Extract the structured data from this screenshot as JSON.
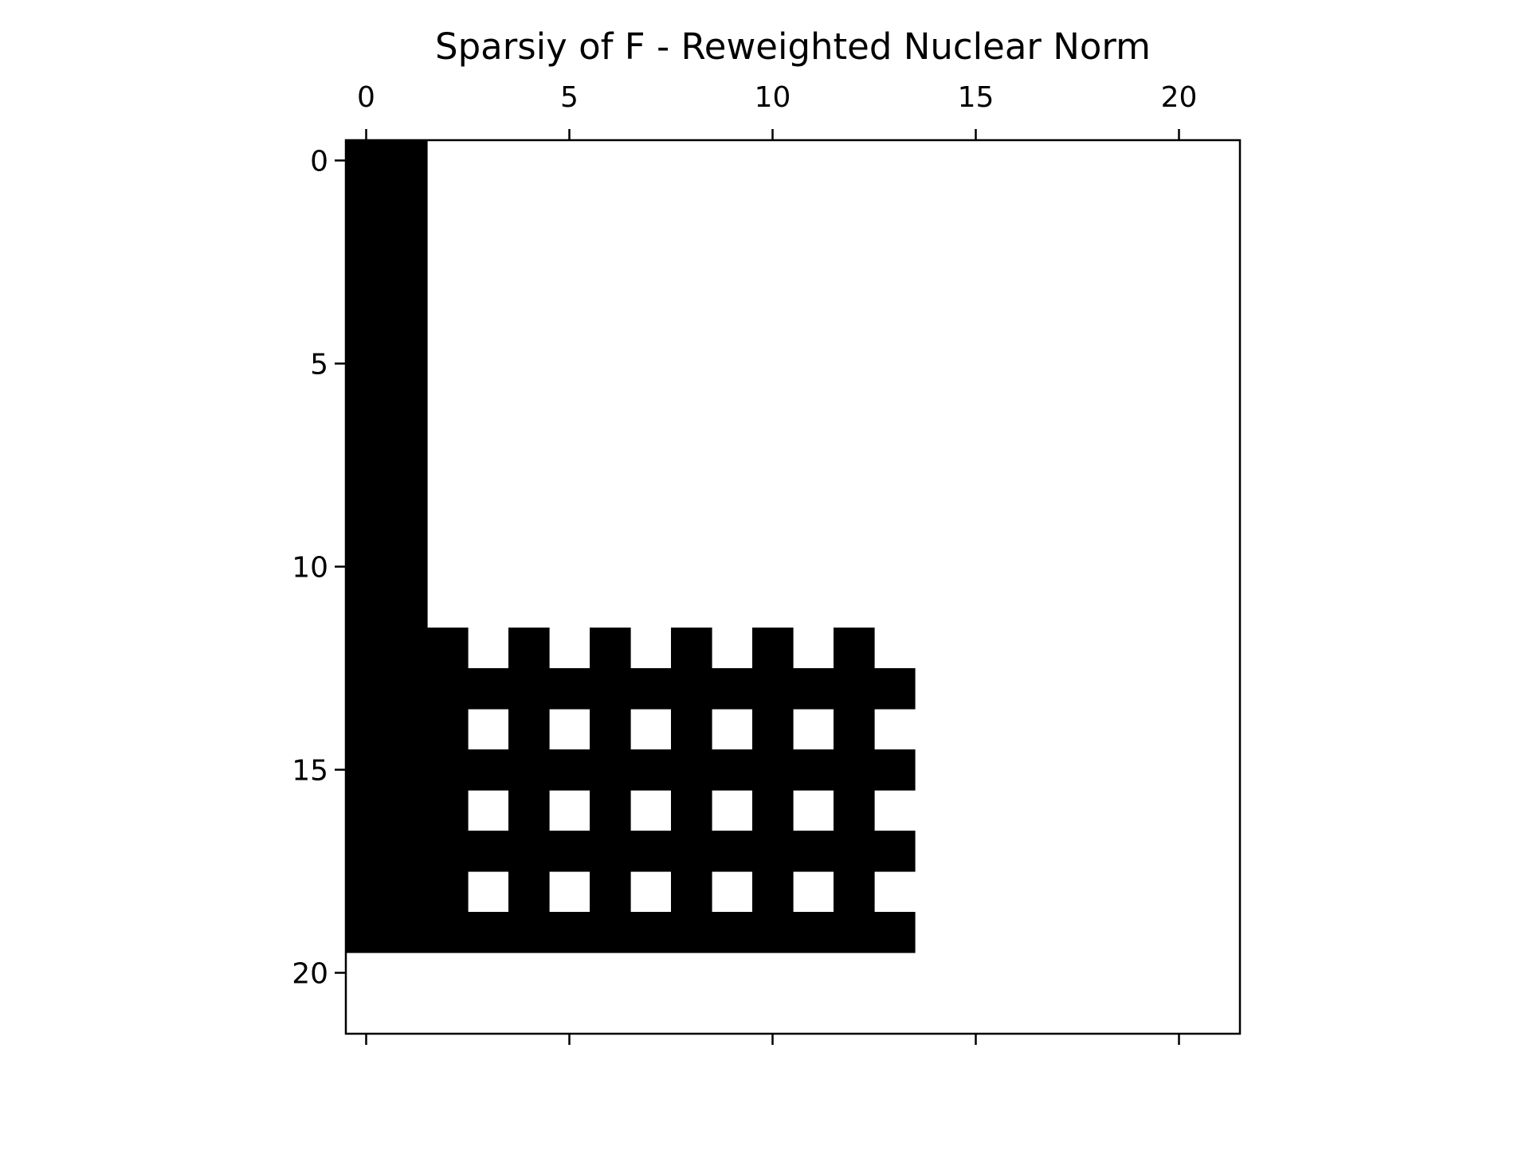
{
  "chart_data": {
    "type": "heatmap",
    "subtype": "sparsity-pattern",
    "title": "Sparsiy of F - Reweighted Nuclear Norm",
    "xlabel": "",
    "ylabel": "",
    "x_ticks": [
      "0",
      "5",
      "10",
      "15",
      "20"
    ],
    "y_ticks": [
      "0",
      "5",
      "10",
      "15",
      "20"
    ],
    "x_tick_values": [
      0,
      5,
      10,
      15,
      20
    ],
    "y_tick_values": [
      0,
      5,
      10,
      15,
      20
    ],
    "x_tick_position": "top",
    "xlim": [
      -0.5,
      21.5
    ],
    "ylim": [
      21.5,
      -0.5
    ],
    "grid": false,
    "colors": {
      "nonzero": "#000000",
      "zero": "#ffffff",
      "axes": "#000000"
    },
    "rows": 22,
    "cols": 22,
    "matrix_rows": [
      "1100000000000000000000",
      "1100000000000000000000",
      "1100000000000000000000",
      "1100000000000000000000",
      "1100000000000000000000",
      "1100000000000000000000",
      "1100000000000000000000",
      "1100000000000000000000",
      "1100000000000000000000",
      "1100000000000000000000",
      "1100000000000000000000",
      "1100000000000000000000",
      "1110101010101000000000",
      "1111111111111100000000",
      "1110101010101000000000",
      "1111111111111100000000",
      "1110101010101000000000",
      "1111111111111100000000",
      "1110101010101000000000",
      "1111111111111100000000",
      "0000000000000000000000",
      "0000000000000000000000"
    ]
  }
}
